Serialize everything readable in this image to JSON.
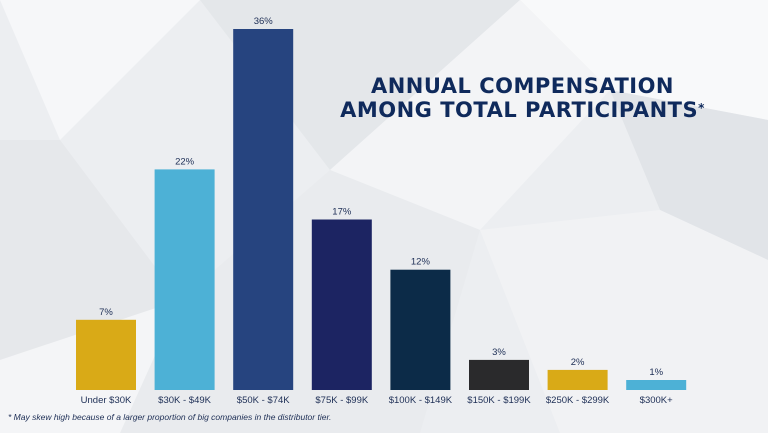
{
  "chart_data": {
    "type": "bar",
    "title_line1": "ANNUAL COMPENSATION",
    "title_line2": "AMONG TOTAL PARTICIPANTS",
    "title_mark": "*",
    "categories": [
      "Under $30K",
      "$30K - $49K",
      "$50K - $74K",
      "$75K - $99K",
      "$100K - $149K",
      "$150K - $199K",
      "$250K - $299K",
      "$300K+"
    ],
    "values": [
      7,
      22,
      36,
      17,
      12,
      3,
      2,
      1
    ],
    "value_labels": [
      "7%",
      "22%",
      "36%",
      "17%",
      "12%",
      "3%",
      "2%",
      "1%"
    ],
    "colors": [
      "#d9aa17",
      "#4db1d6",
      "#26447f",
      "#1c2462",
      "#0c2b48",
      "#2a2a2c",
      "#d9aa17",
      "#4db1d6"
    ],
    "ylim": [
      0,
      36
    ],
    "xlabel": "",
    "ylabel": "",
    "grid": false,
    "footnote": "* May skew high because of a larger proportion of big companies in the distributor tier."
  }
}
